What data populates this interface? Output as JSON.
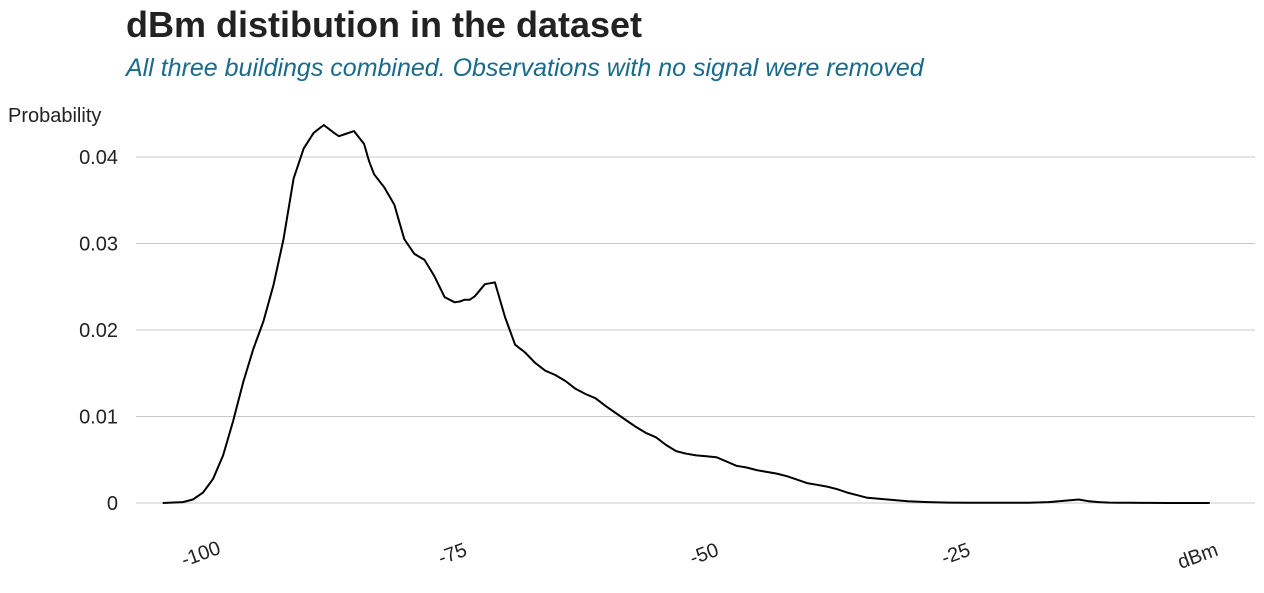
{
  "chart_data": {
    "type": "line",
    "title": "dBm distibution in the dataset",
    "subtitle": "All three buildings combined. Observations with no signal were removed",
    "xlabel": "dBm",
    "ylabel": "Probability",
    "xlim": [
      -104,
      0
    ],
    "ylim": [
      0,
      0.04
    ],
    "x_ticks": [
      -100,
      -75,
      -50,
      -25
    ],
    "y_ticks": [
      0,
      0.01,
      0.02,
      0.03,
      0.04
    ],
    "y_tick_labels": [
      "0",
      "0.01",
      "0.02",
      "0.03",
      "0.04"
    ],
    "grid": "horizontal",
    "series": [
      {
        "color": "#000000",
        "x": [
          -104,
          -102,
          -101,
          -100,
          -99,
          -98,
          -97,
          -96,
          -95,
          -94,
          -93,
          -92,
          -91,
          -90,
          -89,
          -88,
          -87,
          -86.5,
          -86,
          -85,
          -84,
          -83.5,
          -83,
          -82,
          -81,
          -80,
          -79,
          -78,
          -77,
          -76,
          -75,
          -74.5,
          -74,
          -73.5,
          -73,
          -72,
          -71,
          -70,
          -69,
          -68,
          -67,
          -66,
          -65,
          -64,
          -63,
          -62,
          -61,
          -60,
          -59,
          -58,
          -57,
          -56,
          -55,
          -54,
          -53,
          -52,
          -51,
          -50,
          -49,
          -48,
          -47,
          -46,
          -45,
          -44,
          -43,
          -42,
          -41,
          -40,
          -39,
          -38,
          -37,
          -36,
          -35,
          -34,
          -32,
          -30,
          -28,
          -26,
          -24,
          -22,
          -20,
          -18,
          -16,
          -15,
          -14,
          -13,
          -12,
          -11,
          -10,
          -9,
          -8,
          -6,
          -4,
          -2,
          0
        ],
        "values": [
          0,
          0.0001,
          0.0004,
          0.0012,
          0.0028,
          0.0055,
          0.0095,
          0.014,
          0.0178,
          0.021,
          0.0252,
          0.0305,
          0.0375,
          0.041,
          0.0428,
          0.0437,
          0.0428,
          0.0424,
          0.0426,
          0.043,
          0.0415,
          0.0395,
          0.038,
          0.0365,
          0.0345,
          0.0305,
          0.0288,
          0.0281,
          0.0262,
          0.0238,
          0.0232,
          0.0233,
          0.0235,
          0.0235,
          0.0239,
          0.0253,
          0.0255,
          0.0215,
          0.0183,
          0.0174,
          0.0162,
          0.0153,
          0.0148,
          0.0141,
          0.0132,
          0.0126,
          0.0121,
          0.0112,
          0.0104,
          0.0096,
          0.0088,
          0.0081,
          0.0076,
          0.0067,
          0.006,
          0.0057,
          0.0055,
          0.0054,
          0.0053,
          0.0048,
          0.0043,
          0.0041,
          0.0038,
          0.0036,
          0.0034,
          0.0031,
          0.0027,
          0.0023,
          0.0021,
          0.0019,
          0.0016,
          0.0012,
          0.0009,
          0.0006,
          0.0004,
          0.0002,
          0.0001,
          5e-05,
          3e-05,
          2e-05,
          2e-05,
          4e-05,
          0.0001,
          0.0002,
          0.0003,
          0.0004,
          0.0002,
          0.0001,
          5e-05,
          3e-05,
          2e-05,
          1e-05,
          0,
          0,
          0
        ]
      }
    ]
  },
  "colors": {
    "title": "#222222",
    "subtitle": "#1a6a8a",
    "grid": "#c8c8c8",
    "line": "#000000"
  }
}
